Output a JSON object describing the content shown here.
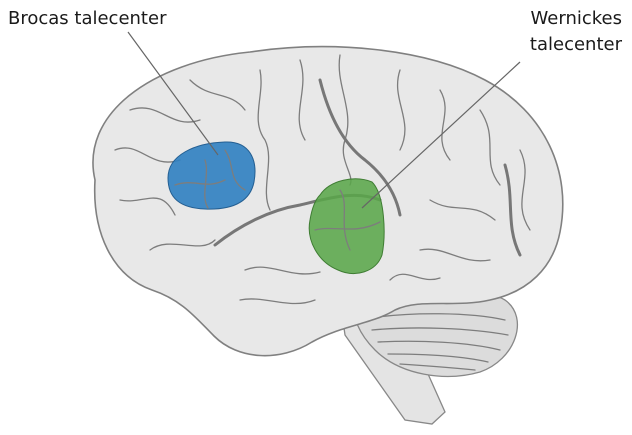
{
  "labels": [
    {
      "lines": [
        "Brocas talecenter"
      ]
    },
    {
      "lines": [
        "Wernickes",
        "talecenter"
      ]
    }
  ]
}
